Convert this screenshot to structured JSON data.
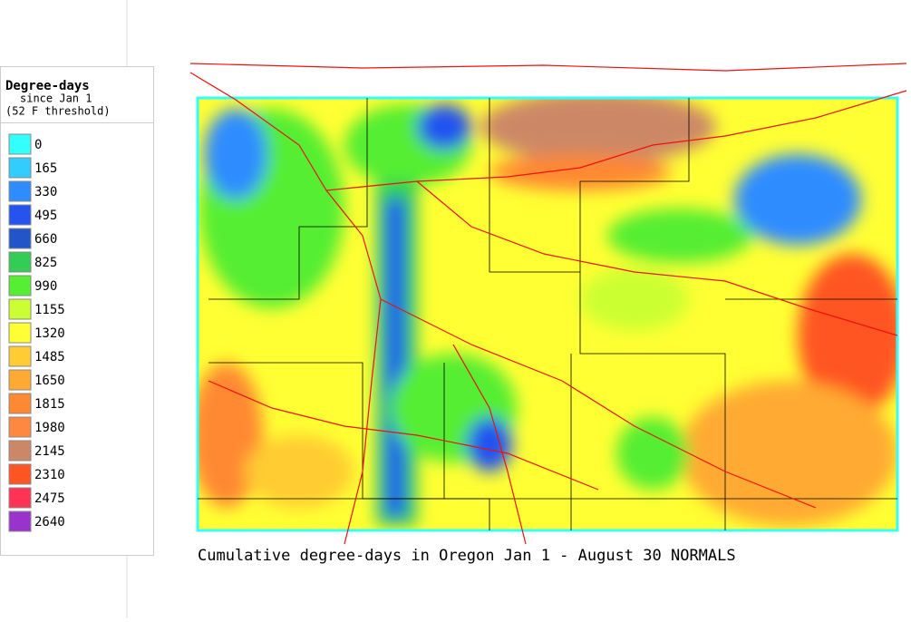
{
  "legend": {
    "title": "Degree-days",
    "subtitle": "since Jan 1",
    "note": "(52 F threshold)",
    "items": [
      {
        "label": 0,
        "color": "#33ffff"
      },
      {
        "label": 165,
        "color": "#33ccff"
      },
      {
        "label": 330,
        "color": "#2e8cff"
      },
      {
        "label": 495,
        "color": "#2453f0"
      },
      {
        "label": 660,
        "color": "#2255c8"
      },
      {
        "label": 825,
        "color": "#33cc55"
      },
      {
        "label": 990,
        "color": "#55ee33"
      },
      {
        "label": 1155,
        "color": "#ccff33"
      },
      {
        "label": 1320,
        "color": "#ffff33"
      },
      {
        "label": 1485,
        "color": "#ffcc33"
      },
      {
        "label": 1650,
        "color": "#ffaa33"
      },
      {
        "label": 1815,
        "color": "#ff8833"
      },
      {
        "label": 1980,
        "color": "#ff8840"
      },
      {
        "label": 2145,
        "color": "#cc8866"
      },
      {
        "label": 2310,
        "color": "#ff5522"
      },
      {
        "label": 2475,
        "color": "#ff3355"
      },
      {
        "label": 2640,
        "color": "#9933cc"
      }
    ]
  },
  "caption": "Cumulative degree-days in Oregon Jan 1 - August 30 NORMALS"
}
